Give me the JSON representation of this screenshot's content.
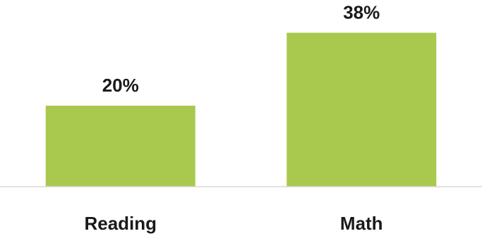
{
  "chart_data": {
    "type": "bar",
    "categories": [
      "Reading",
      "Math"
    ],
    "values": [
      20,
      38
    ],
    "value_labels": [
      "20%",
      "38%"
    ],
    "title": "",
    "xlabel": "",
    "ylabel": "",
    "ylim": [
      0,
      40
    ],
    "grid": false,
    "legend": "none",
    "bar_color": "#a8c94e",
    "axis_color": "#d9d9d9"
  }
}
